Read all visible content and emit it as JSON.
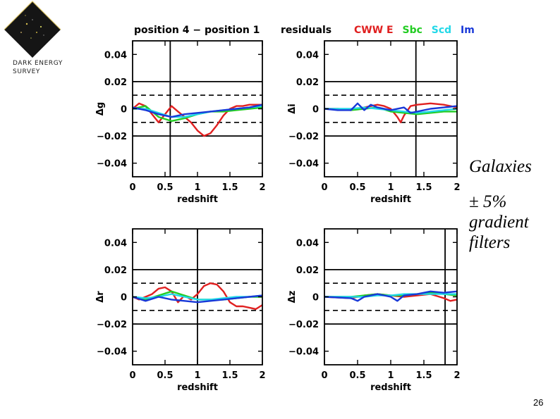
{
  "logo": {
    "line1": "DARK ENERGY",
    "line2": "SURVEY"
  },
  "header": {
    "left_title": "position 4 − position 1",
    "right_title": "residuals",
    "legend": [
      {
        "label": "CWW E",
        "color": "#e02020"
      },
      {
        "label": "Sbc",
        "color": "#22cc22"
      },
      {
        "label": "Scd",
        "color": "#22d8e8"
      },
      {
        "label": "Im",
        "color": "#1838d8"
      }
    ]
  },
  "side_text": {
    "line1": "Galaxies",
    "line2": "± 5%",
    "line3": "gradient",
    "line4": "filters"
  },
  "page_number": "26",
  "chart_data": [
    {
      "type": "line",
      "ylabel": "Δg",
      "xlabel": "redshift",
      "xlim": [
        0,
        2
      ],
      "ylim": [
        -0.05,
        0.05
      ],
      "xticks": [
        "0",
        "0.5",
        "1",
        "1.5",
        "2"
      ],
      "yticks": [
        "0.04",
        "0.02",
        "0",
        "−0.02",
        "−0.04"
      ],
      "solid_lines": [
        0.02,
        -0.02
      ],
      "dashed_lines": [
        0.01,
        -0.01
      ],
      "vline": 0.58,
      "series": [
        {
          "color": "#e02020",
          "x": [
            0,
            0.1,
            0.2,
            0.3,
            0.4,
            0.5,
            0.6,
            0.7,
            0.8,
            0.9,
            1.0,
            1.1,
            1.2,
            1.3,
            1.4,
            1.5,
            1.6,
            1.7,
            1.8,
            1.9,
            2.0
          ],
          "y": [
            0.0,
            0.004,
            0.002,
            -0.004,
            -0.01,
            -0.004,
            0.002,
            -0.002,
            -0.006,
            -0.01,
            -0.016,
            -0.02,
            -0.018,
            -0.012,
            -0.005,
            0.0,
            0.002,
            0.002,
            0.003,
            0.003,
            0.003
          ]
        },
        {
          "color": "#22cc22",
          "x": [
            0,
            0.2,
            0.4,
            0.6,
            0.8,
            1.0,
            1.2,
            1.4,
            1.6,
            1.8,
            2.0
          ],
          "y": [
            0.0,
            0.002,
            -0.006,
            -0.009,
            -0.007,
            -0.004,
            -0.002,
            -0.002,
            -0.001,
            0.0,
            0.001
          ]
        },
        {
          "color": "#22d8e8",
          "x": [
            0,
            0.2,
            0.4,
            0.6,
            0.8,
            1.0,
            1.2,
            1.4,
            1.6,
            1.8,
            2.0
          ],
          "y": [
            0.0,
            0.0,
            -0.003,
            -0.006,
            -0.006,
            -0.004,
            -0.002,
            -0.001,
            0.0,
            0.001,
            0.002
          ]
        },
        {
          "color": "#1838d8",
          "x": [
            0,
            0.2,
            0.4,
            0.6,
            0.8,
            1.0,
            1.2,
            1.4,
            1.6,
            1.8,
            2.0
          ],
          "y": [
            0.001,
            -0.001,
            -0.004,
            -0.006,
            -0.004,
            -0.003,
            -0.002,
            -0.001,
            0.0,
            0.001,
            0.003
          ]
        }
      ]
    },
    {
      "type": "line",
      "ylabel": "Δi",
      "xlabel": "redshift",
      "xlim": [
        0,
        2
      ],
      "ylim": [
        -0.05,
        0.05
      ],
      "xticks": [
        "0",
        "0.5",
        "1",
        "1.5",
        "2"
      ],
      "yticks": [
        "0.04",
        "0.02",
        "0",
        "−0.02",
        "−0.04"
      ],
      "solid_lines": [
        0.02,
        -0.02
      ],
      "dashed_lines": [
        0.01,
        -0.01
      ],
      "vline": 1.38,
      "series": [
        {
          "color": "#e02020",
          "x": [
            0,
            0.2,
            0.4,
            0.6,
            0.8,
            0.9,
            1.0,
            1.1,
            1.15,
            1.2,
            1.3,
            1.4,
            1.6,
            1.8,
            2.0
          ],
          "y": [
            0.0,
            0.0,
            -0.001,
            0.001,
            0.003,
            0.002,
            0.0,
            -0.006,
            -0.01,
            -0.005,
            0.002,
            0.003,
            0.004,
            0.003,
            0.001
          ]
        },
        {
          "color": "#22cc22",
          "x": [
            0,
            0.4,
            0.6,
            0.8,
            1.0,
            1.2,
            1.4,
            1.6,
            1.8,
            2.0
          ],
          "y": [
            0.0,
            -0.001,
            0.0,
            0.001,
            -0.002,
            -0.003,
            -0.004,
            -0.003,
            -0.002,
            -0.002
          ]
        },
        {
          "color": "#22d8e8",
          "x": [
            0,
            0.4,
            0.6,
            0.8,
            1.0,
            1.2,
            1.4,
            1.6,
            1.8,
            2.0
          ],
          "y": [
            0.0,
            0.0,
            0.001,
            0.0,
            -0.001,
            -0.002,
            -0.003,
            -0.002,
            -0.001,
            0.0
          ]
        },
        {
          "color": "#1838d8",
          "x": [
            0,
            0.2,
            0.4,
            0.5,
            0.6,
            0.7,
            0.8,
            1.0,
            1.2,
            1.3,
            1.4,
            1.6,
            1.8,
            2.0
          ],
          "y": [
            0.0,
            -0.001,
            -0.001,
            0.004,
            -0.001,
            0.003,
            0.001,
            -0.001,
            0.001,
            -0.003,
            -0.002,
            0.0,
            0.001,
            0.002
          ]
        }
      ]
    },
    {
      "type": "line",
      "ylabel": "Δr",
      "xlabel": "redshift",
      "xlim": [
        0,
        2
      ],
      "ylim": [
        -0.05,
        0.05
      ],
      "xticks": [
        "0",
        "0.5",
        "1",
        "1.5",
        "2"
      ],
      "yticks": [
        "0.04",
        "0.02",
        "0",
        "−0.02",
        "−0.04"
      ],
      "solid_lines": [
        0.02,
        -0.02
      ],
      "dashed_lines": [
        0.01,
        -0.01
      ],
      "vline": 1.0,
      "series": [
        {
          "color": "#e02020",
          "x": [
            0,
            0.1,
            0.2,
            0.3,
            0.4,
            0.5,
            0.6,
            0.7,
            0.8,
            0.9,
            1.0,
            1.1,
            1.2,
            1.3,
            1.4,
            1.5,
            1.6,
            1.7,
            1.8,
            1.9,
            2.0
          ],
          "y": [
            0.0,
            -0.002,
            0.0,
            0.002,
            0.006,
            0.007,
            0.004,
            -0.004,
            0.001,
            -0.002,
            0.002,
            0.008,
            0.01,
            0.009,
            0.004,
            -0.004,
            -0.007,
            -0.007,
            -0.008,
            -0.009,
            -0.006
          ]
        },
        {
          "color": "#22cc22",
          "x": [
            0,
            0.2,
            0.4,
            0.6,
            0.8,
            1.0,
            1.2,
            1.4,
            1.6,
            1.8,
            2.0
          ],
          "y": [
            0.0,
            -0.002,
            0.001,
            0.004,
            0.001,
            -0.002,
            -0.002,
            -0.002,
            -0.001,
            0.0,
            0.0
          ]
        },
        {
          "color": "#22d8e8",
          "x": [
            0,
            0.2,
            0.4,
            0.6,
            0.8,
            1.0,
            1.2,
            1.4,
            1.6,
            1.8,
            2.0
          ],
          "y": [
            0.0,
            -0.001,
            0.0,
            0.002,
            0.0,
            -0.002,
            -0.002,
            -0.001,
            0.0,
            0.0,
            0.001
          ]
        },
        {
          "color": "#1838d8",
          "x": [
            0,
            0.2,
            0.4,
            0.6,
            0.8,
            1.0,
            1.2,
            1.4,
            1.6,
            1.8,
            2.0
          ],
          "y": [
            0.0,
            -0.003,
            0.0,
            -0.002,
            -0.003,
            -0.004,
            -0.003,
            -0.002,
            -0.001,
            0.0,
            0.001
          ]
        }
      ]
    },
    {
      "type": "line",
      "ylabel": "Δz",
      "xlabel": "redshift",
      "xlim": [
        0,
        2
      ],
      "ylim": [
        -0.05,
        0.05
      ],
      "xticks": [
        "0",
        "0.5",
        "1",
        "1.5",
        "2"
      ],
      "yticks": [
        "0.04",
        "0.02",
        "0",
        "−0.02",
        "−0.04"
      ],
      "solid_lines": [
        0.02,
        -0.02
      ],
      "dashed_lines": [
        0.01,
        -0.01
      ],
      "vline": 1.82,
      "series": [
        {
          "color": "#e02020",
          "x": [
            0,
            0.4,
            0.6,
            0.8,
            1.0,
            1.2,
            1.4,
            1.6,
            1.8,
            1.9,
            2.0
          ],
          "y": [
            0.0,
            -0.001,
            0.001,
            0.002,
            0.001,
            0.0,
            0.001,
            0.002,
            -0.001,
            -0.003,
            -0.002
          ]
        },
        {
          "color": "#22cc22",
          "x": [
            0,
            0.4,
            0.6,
            0.8,
            1.0,
            1.2,
            1.4,
            1.6,
            1.8,
            2.0
          ],
          "y": [
            0.0,
            0.0,
            0.001,
            0.002,
            0.001,
            0.001,
            0.002,
            0.003,
            0.002,
            0.001
          ]
        },
        {
          "color": "#22d8e8",
          "x": [
            0,
            0.4,
            0.6,
            0.8,
            1.0,
            1.2,
            1.4,
            1.6,
            1.8,
            2.0
          ],
          "y": [
            0.0,
            0.0,
            0.0,
            0.001,
            0.001,
            0.002,
            0.002,
            0.002,
            0.002,
            0.002
          ]
        },
        {
          "color": "#1838d8",
          "x": [
            0,
            0.4,
            0.5,
            0.6,
            0.8,
            1.0,
            1.1,
            1.2,
            1.4,
            1.6,
            1.8,
            2.0
          ],
          "y": [
            0.0,
            -0.001,
            -0.003,
            0.0,
            0.002,
            0.0,
            -0.003,
            0.001,
            0.002,
            0.004,
            0.003,
            0.004
          ]
        }
      ]
    }
  ]
}
